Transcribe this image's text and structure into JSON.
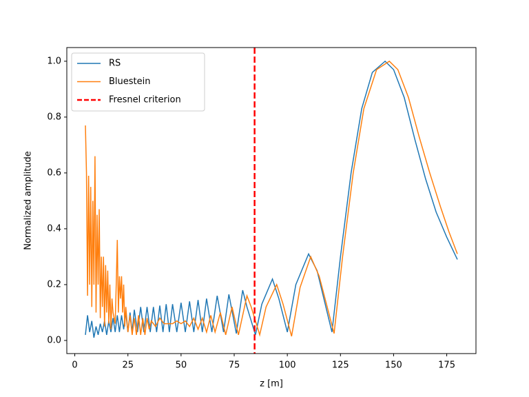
{
  "chart_data": {
    "type": "line",
    "xlabel": "z [m]",
    "ylabel": "Normalized amplitude",
    "xlim": [
      -3.75,
      188.75
    ],
    "ylim": [
      -0.047,
      1.049
    ],
    "xticks": [
      0,
      25,
      50,
      75,
      100,
      125,
      150,
      175
    ],
    "yticks": [
      {
        "value": 0,
        "label": "0.0"
      },
      0.2,
      0.4,
      0.6,
      0.8,
      {
        "value": 1,
        "label": "1.0"
      }
    ],
    "legend": "upper left",
    "series": [
      {
        "name": "RS",
        "color": "#1f77b4",
        "x": [
          5,
          6,
          7,
          8,
          9,
          10,
          11,
          12,
          13,
          14,
          15,
          16,
          17,
          18,
          19,
          20,
          21,
          22,
          23,
          24,
          25,
          26,
          27,
          28,
          29.5,
          31,
          32.5,
          34,
          35.5,
          37,
          38.5,
          40,
          41.5,
          43,
          44.5,
          46,
          48,
          50,
          52,
          54,
          56,
          58,
          60,
          62,
          64.5,
          67,
          70,
          72.5,
          76,
          79,
          81,
          85,
          88,
          93,
          96,
          100,
          104,
          110,
          114,
          121,
          125,
          130,
          135,
          140,
          146,
          150,
          155,
          160,
          165,
          170,
          175,
          180
        ],
        "values": [
          0.02,
          0.09,
          0.03,
          0.07,
          0.01,
          0.05,
          0.02,
          0.06,
          0.03,
          0.07,
          0.02,
          0.07,
          0.03,
          0.08,
          0.03,
          0.09,
          0.03,
          0.09,
          0.04,
          0.1,
          0.03,
          0.1,
          0.03,
          0.11,
          0.03,
          0.12,
          0.03,
          0.12,
          0.03,
          0.12,
          0.03,
          0.125,
          0.03,
          0.13,
          0.03,
          0.13,
          0.03,
          0.135,
          0.03,
          0.14,
          0.03,
          0.145,
          0.03,
          0.15,
          0.03,
          0.16,
          0.03,
          0.165,
          0.025,
          0.18,
          0.12,
          0.02,
          0.13,
          0.22,
          0.15,
          0.03,
          0.2,
          0.31,
          0.25,
          0.03,
          0.3,
          0.6,
          0.83,
          0.96,
          1.0,
          0.97,
          0.87,
          0.72,
          0.58,
          0.46,
          0.37,
          0.29
        ]
      },
      {
        "name": "Bluestein",
        "color": "#ff7f0e",
        "x": [
          5,
          5.5,
          6,
          6.5,
          7,
          7.5,
          8,
          8.5,
          9,
          9.5,
          10,
          10.5,
          11,
          11.5,
          12,
          12.5,
          13,
          13.5,
          14,
          14.5,
          15,
          15.5,
          16,
          16.5,
          17,
          17.5,
          18,
          19,
          19.5,
          20,
          20.5,
          21,
          21.5,
          22,
          22.5,
          23,
          23.5,
          24,
          25,
          26,
          27,
          28,
          29,
          30,
          31,
          32,
          33,
          34,
          35,
          36,
          38,
          40,
          42,
          44,
          46,
          48,
          50,
          52,
          54,
          56,
          58,
          60,
          62,
          64,
          66,
          68.5,
          71,
          74,
          77,
          81,
          83,
          87,
          90,
          95,
          98,
          102,
          106,
          111,
          115,
          122,
          126,
          131,
          136,
          142,
          148,
          152,
          157,
          162,
          167,
          172,
          176,
          180
        ],
        "values": [
          0.77,
          0.6,
          0.16,
          0.59,
          0.2,
          0.55,
          0.12,
          0.5,
          0.2,
          0.66,
          0.1,
          0.45,
          0.2,
          0.47,
          0.08,
          0.3,
          0.12,
          0.3,
          0.05,
          0.27,
          0.1,
          0.25,
          0.06,
          0.2,
          0.04,
          0.15,
          0.1,
          0.06,
          0.2,
          0.36,
          0.1,
          0.23,
          0.15,
          0.23,
          0.1,
          0.2,
          0.05,
          0.12,
          0.03,
          0.09,
          0.02,
          0.08,
          0.02,
          0.09,
          0.02,
          0.08,
          0.02,
          0.08,
          0.04,
          0.07,
          0.05,
          0.08,
          0.06,
          0.06,
          0.06,
          0.07,
          0.06,
          0.07,
          0.05,
          0.08,
          0.04,
          0.08,
          0.03,
          0.09,
          0.03,
          0.1,
          0.02,
          0.12,
          0.02,
          0.16,
          0.12,
          0.02,
          0.12,
          0.2,
          0.13,
          0.015,
          0.19,
          0.3,
          0.23,
          0.025,
          0.3,
          0.6,
          0.83,
          0.97,
          1.0,
          0.97,
          0.87,
          0.73,
          0.6,
          0.48,
          0.39,
          0.31
        ]
      }
    ],
    "vline": {
      "name": "Fresnel criterion",
      "x": 84.6,
      "color": "#ff0000"
    }
  }
}
